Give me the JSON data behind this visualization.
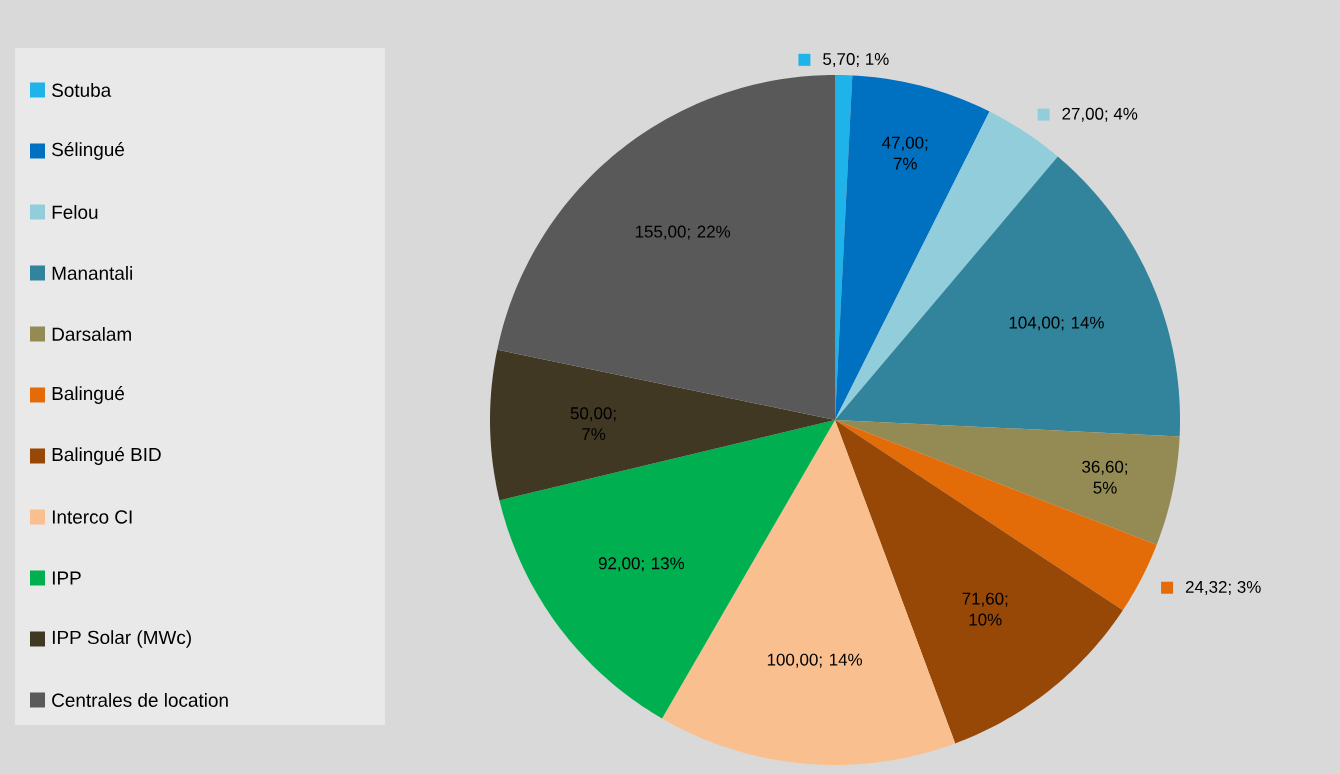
{
  "chart_data": {
    "type": "pie",
    "categories": [
      "Sotuba",
      "Sélingué",
      "Felou",
      "Manantali",
      "Darsalam",
      "Balingué",
      "Balingué BID",
      "Interco CI",
      "IPP",
      "IPP Solar (MWc)",
      "Centrales de location"
    ],
    "values": [
      5.7,
      47.0,
      27.0,
      104.0,
      36.6,
      24.32,
      71.6,
      100.0,
      92.0,
      50.0,
      155.0
    ],
    "value_labels": [
      "5,70; 1%",
      "47,00; 7%",
      "27,00; 4%",
      "104,00; 14%",
      "36,60; 5%",
      "24,32; 3%",
      "71,60; 10%",
      "100,00; 14%",
      "92,00; 13%",
      "50,00; 7%",
      "155,00; 22%"
    ],
    "colors": [
      "#1eb4ea",
      "#0070c0",
      "#92cddc",
      "#31849b",
      "#948a54",
      "#e36c09",
      "#974806",
      "#fabf8f",
      "#00b050",
      "#403823",
      "#595959"
    ],
    "legend": "left"
  }
}
